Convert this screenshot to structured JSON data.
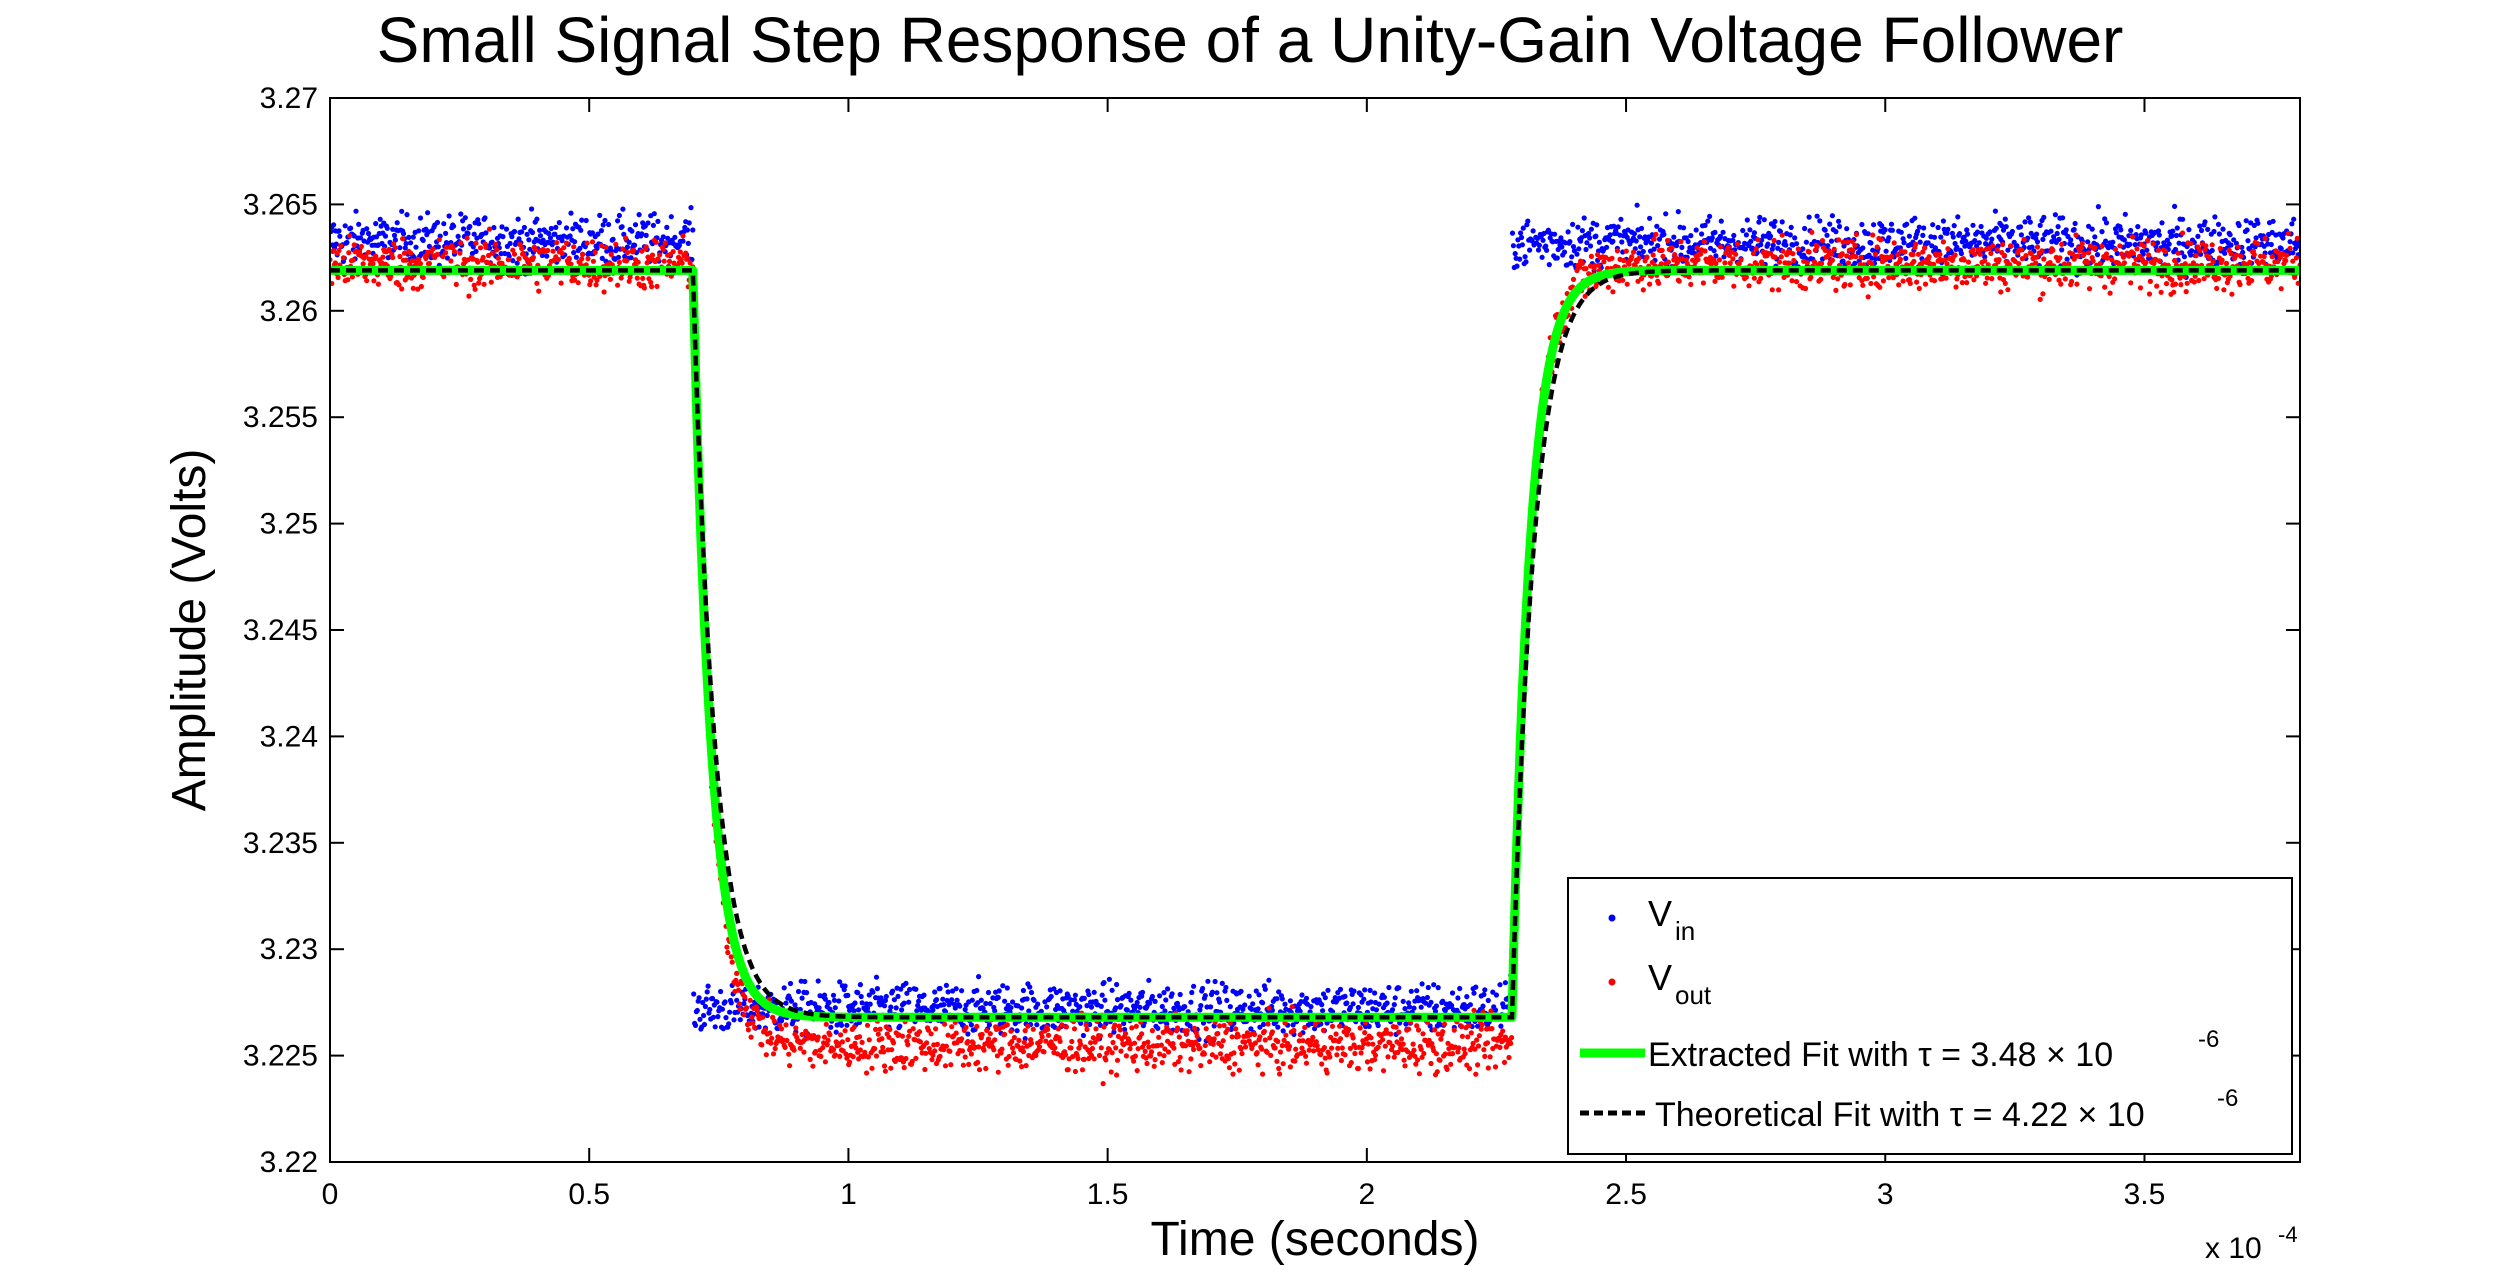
{
  "chart_data": {
    "type": "scatter",
    "title": "Small Signal Step Response of a Unity-Gain Voltage Follower",
    "xlabel": "Time (seconds)",
    "ylabel": "Amplitude (Volts)",
    "x_exponent_label": "x 10",
    "x_exponent": "-4",
    "xlim": [
      0,
      3.8
    ],
    "ylim": [
      3.22,
      3.27
    ],
    "x_ticks": [
      "0",
      "0.5",
      "1",
      "1.5",
      "2",
      "2.5",
      "3",
      "3.5"
    ],
    "y_ticks": [
      "3.22",
      "3.225",
      "3.23",
      "3.235",
      "3.24",
      "3.245",
      "3.25",
      "3.255",
      "3.26",
      "3.265",
      "3.27"
    ],
    "grid": false,
    "legend_position": "bottom-right",
    "step_times": [
      0.7,
      2.28
    ],
    "series": [
      {
        "name_main": "V",
        "name_sub": "in",
        "style": "points",
        "color": "#0000ff",
        "segments": [
          {
            "x_start": 0,
            "x_end": 0.7,
            "mean": 3.2633,
            "noise": 0.0006
          },
          {
            "x_start": 0.7,
            "x_end": 2.28,
            "mean": 3.2272,
            "noise": 0.0006
          },
          {
            "x_start": 2.28,
            "x_end": 3.8,
            "mean": 3.2632,
            "noise": 0.0006
          }
        ]
      },
      {
        "name_main": "V",
        "name_sub": "out",
        "style": "points",
        "color": "#ff0000",
        "segments": [
          {
            "x_start": 0,
            "x_end": 0.7,
            "level": 3.2622,
            "noise": 0.0006
          },
          {
            "x_start": 0.7,
            "x_end": 2.28,
            "level": 3.2255,
            "tau": 0.0348,
            "noise": 0.0006
          },
          {
            "x_start": 2.28,
            "x_end": 3.8,
            "level": 3.2622,
            "tau": 0.0348,
            "noise": 0.0006
          }
        ]
      },
      {
        "name": "Extracted Fit with τ = 3.48 × 10",
        "name_exponent": "-6",
        "style": "line",
        "color": "#00ff00",
        "tau": 0.0348,
        "high": 3.2619,
        "low": 3.2268
      },
      {
        "name": "Theoretical Fit with τ = 4.22 × 10",
        "name_exponent": "-6",
        "style": "dashed-line",
        "color": "#000000",
        "tau": 0.0422,
        "high": 3.2619,
        "low": 3.2268
      }
    ]
  }
}
